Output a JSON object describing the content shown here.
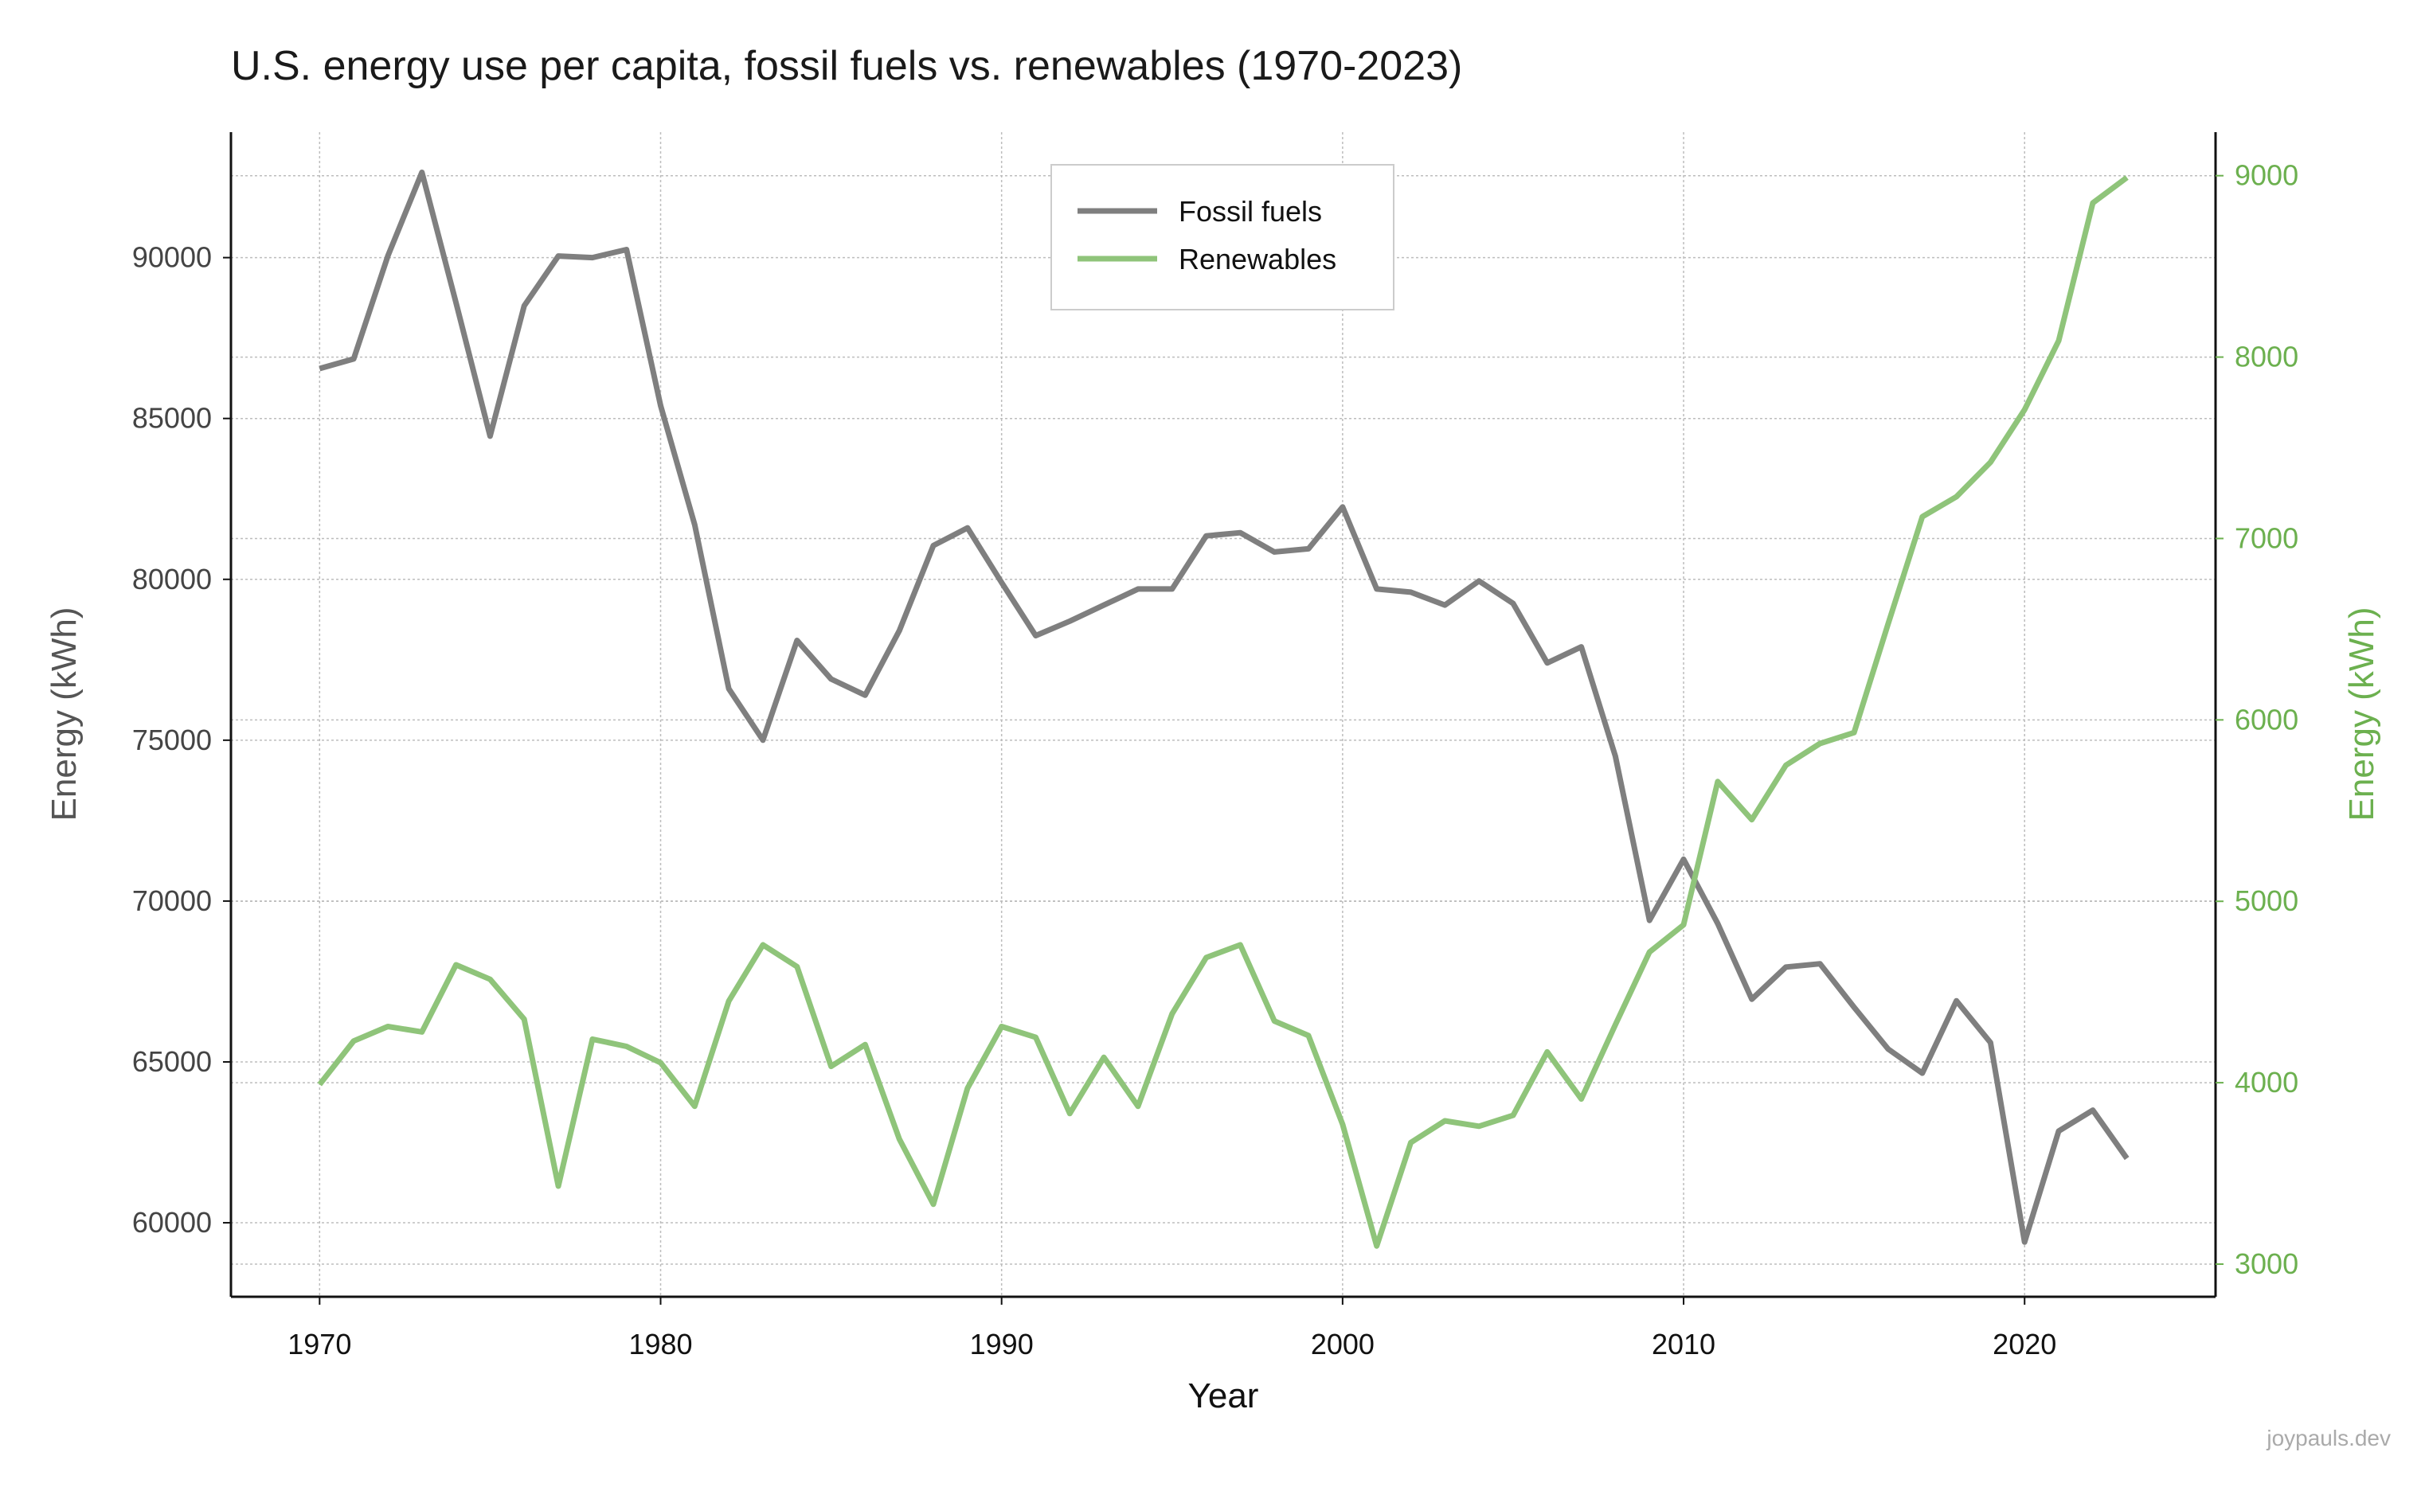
{
  "colors": {
    "fossil": "#7f7f7f",
    "renewables": "#8fc47a",
    "right_axis": "#6cb04f",
    "left_axis_label": "#555555",
    "grid": "#bdbdbd",
    "axis": "#111111"
  },
  "chart_data": {
    "type": "line",
    "title": "U.S. energy use per capita, fossil fuels vs. renewables (1970-2023)",
    "xlabel": "Year",
    "ylabel_left": "Energy (kWh)",
    "ylabel_right": "Energy (kWh)",
    "xlim": [
      1967.4,
      2025.6
    ],
    "ylim_left": [
      57700,
      93900
    ],
    "ylim_right": [
      2820,
      9240
    ],
    "xticks": [
      1970,
      1980,
      1990,
      2000,
      2010,
      2020
    ],
    "yticks_left": [
      60000,
      65000,
      70000,
      75000,
      80000,
      85000,
      90000
    ],
    "yticks_right": [
      3000,
      4000,
      5000,
      6000,
      7000,
      8000,
      9000
    ],
    "grid": true,
    "legend_position": "top-center",
    "x": [
      1970,
      1971,
      1972,
      1973,
      1974,
      1975,
      1976,
      1977,
      1978,
      1979,
      1980,
      1981,
      1982,
      1983,
      1984,
      1985,
      1986,
      1987,
      1988,
      1989,
      1990,
      1991,
      1992,
      1993,
      1994,
      1995,
      1996,
      1997,
      1998,
      1999,
      2000,
      2001,
      2002,
      2003,
      2004,
      2005,
      2006,
      2007,
      2008,
      2009,
      2010,
      2011,
      2012,
      2013,
      2014,
      2015,
      2016,
      2017,
      2018,
      2019,
      2020,
      2021,
      2022,
      2023
    ],
    "series": [
      {
        "name": "Fossil fuels",
        "axis": "left",
        "values": [
          86550,
          86850,
          90050,
          92650,
          88600,
          84450,
          88500,
          90050,
          90000,
          90250,
          85400,
          81700,
          76600,
          75000,
          78100,
          76900,
          76400,
          78400,
          81050,
          81600,
          79900,
          78250,
          78700,
          79200,
          79700,
          79700,
          81350,
          81450,
          80850,
          80950,
          82250,
          79700,
          79600,
          79200,
          79950,
          79250,
          77400,
          77900,
          74500,
          69400,
          71300,
          69300,
          66950,
          67950,
          68050,
          66700,
          65400,
          64650,
          66900,
          65600,
          59400,
          62850,
          63500,
          62000
        ]
      },
      {
        "name": "Renewables",
        "axis": "right",
        "values": [
          3990,
          4230,
          4310,
          4280,
          4650,
          4570,
          4350,
          3430,
          4240,
          4200,
          4110,
          3870,
          4450,
          4760,
          4640,
          4090,
          4210,
          3690,
          3330,
          3970,
          4310,
          4250,
          3830,
          4140,
          3870,
          4380,
          4690,
          4760,
          4340,
          4260,
          3770,
          3100,
          3670,
          3790,
          3760,
          3820,
          4170,
          3910,
          4320,
          4720,
          4870,
          5660,
          5450,
          5750,
          5870,
          5930,
          6530,
          7120,
          7230,
          7420,
          7710,
          8090,
          8850,
          8990
        ]
      }
    ],
    "watermark": "joypauls.dev"
  }
}
